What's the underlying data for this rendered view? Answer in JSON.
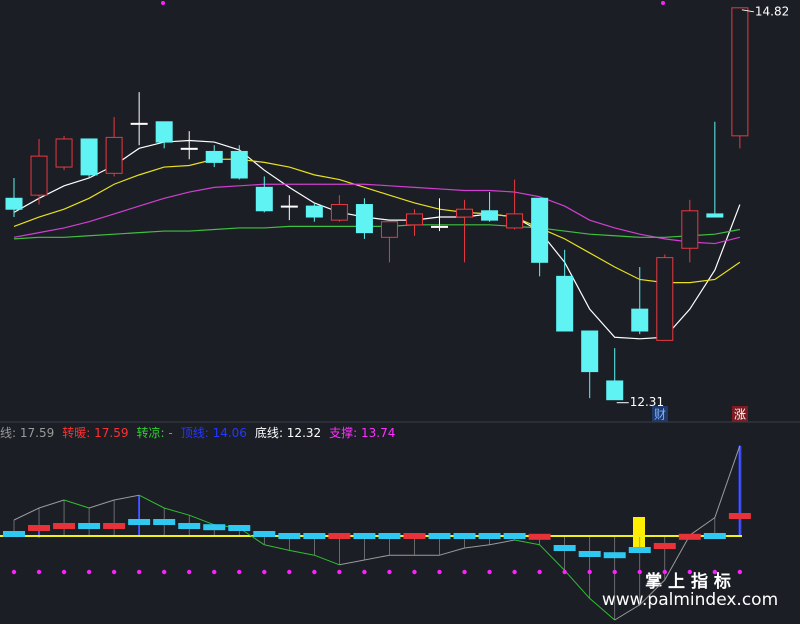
{
  "chart_data": [
    {
      "type": "candlestick",
      "open": [
        13.6,
        13.62,
        13.8,
        13.98,
        13.76,
        14.08,
        14.09,
        13.92,
        13.9,
        13.9,
        13.67,
        13.55,
        13.55,
        13.46,
        13.56,
        13.35,
        13.43,
        13.42,
        13.48,
        13.52,
        13.41,
        13.6,
        13.1,
        12.75,
        12.43,
        12.89,
        12.69,
        13.28,
        13.5,
        14.0
      ],
      "high": [
        13.73,
        13.98,
        14.0,
        13.98,
        14.12,
        14.28,
        14.09,
        14.03,
        13.94,
        13.94,
        13.74,
        13.62,
        13.57,
        13.62,
        13.6,
        13.45,
        13.53,
        13.6,
        13.59,
        13.64,
        13.72,
        13.6,
        13.27,
        12.75,
        12.64,
        13.16,
        13.24,
        13.59,
        14.09,
        14.82
      ],
      "low": [
        13.48,
        13.56,
        13.78,
        13.73,
        13.74,
        13.94,
        13.92,
        13.85,
        13.8,
        13.72,
        13.51,
        13.46,
        13.45,
        13.45,
        13.34,
        13.19,
        13.36,
        13.39,
        13.19,
        13.45,
        13.4,
        13.1,
        12.75,
        12.32,
        12.31,
        12.73,
        12.69,
        13.19,
        13.48,
        13.92
      ],
      "close": [
        13.53,
        13.87,
        13.98,
        13.75,
        13.99,
        14.08,
        13.96,
        13.92,
        13.83,
        13.73,
        13.52,
        13.55,
        13.48,
        13.56,
        13.38,
        13.45,
        13.5,
        13.42,
        13.53,
        13.46,
        13.5,
        13.19,
        12.75,
        12.49,
        12.31,
        12.75,
        13.22,
        13.52,
        13.48,
        14.82
      ],
      "up_color": "#e8393f",
      "down_color": "#5ff3f3",
      "doji_color": "#ffffff",
      "ylim": [
        12.18,
        14.87
      ],
      "moving_averages": [
        {
          "color": "#ffffff",
          "values": [
            13.51,
            13.6,
            13.68,
            13.73,
            13.81,
            13.92,
            13.96,
            13.97,
            13.96,
            13.91,
            13.78,
            13.67,
            13.57,
            13.51,
            13.48,
            13.46,
            13.46,
            13.48,
            13.48,
            13.5,
            13.48,
            13.39,
            13.19,
            12.89,
            12.71,
            12.7,
            12.71,
            12.89,
            13.14,
            13.56
          ]
        },
        {
          "color": "#e8e020",
          "values": [
            13.42,
            13.48,
            13.53,
            13.6,
            13.69,
            13.75,
            13.8,
            13.81,
            13.85,
            13.85,
            13.83,
            13.8,
            13.75,
            13.72,
            13.67,
            13.62,
            13.57,
            13.53,
            13.51,
            13.5,
            13.48,
            13.41,
            13.34,
            13.25,
            13.16,
            13.08,
            13.06,
            13.06,
            13.08,
            13.19
          ]
        },
        {
          "color": "#d040d0",
          "values": [
            13.35,
            13.38,
            13.41,
            13.45,
            13.5,
            13.55,
            13.6,
            13.64,
            13.67,
            13.68,
            13.69,
            13.69,
            13.69,
            13.69,
            13.69,
            13.68,
            13.67,
            13.66,
            13.65,
            13.65,
            13.64,
            13.61,
            13.55,
            13.46,
            13.41,
            13.37,
            13.34,
            13.32,
            13.31,
            13.35
          ]
        },
        {
          "color": "#40c040",
          "values": [
            13.34,
            13.35,
            13.35,
            13.36,
            13.37,
            13.38,
            13.39,
            13.39,
            13.4,
            13.41,
            13.41,
            13.42,
            13.42,
            13.42,
            13.42,
            13.42,
            13.43,
            13.43,
            13.43,
            13.43,
            13.42,
            13.41,
            13.39,
            13.37,
            13.36,
            13.35,
            13.35,
            13.36,
            13.37,
            13.4
          ]
        }
      ],
      "max_label": "14.82",
      "min_label": "12.31",
      "markers": [
        "财",
        "涨"
      ]
    },
    {
      "type": "indicator",
      "legend": [
        {
          "label": "线",
          "value": "17.59",
          "color": "#9a9a9a"
        },
        {
          "label": "转暖",
          "value": "17.59",
          "color": "#ff3030"
        },
        {
          "label": "转凉",
          "value": "-",
          "color": "#30d030"
        },
        {
          "label": "顶线",
          "value": "14.06",
          "color": "#2438ff"
        },
        {
          "label": "底线",
          "value": "12.32",
          "color": "#ffffff"
        },
        {
          "label": "支撑",
          "value": "13.74",
          "color": "#ff30ff"
        }
      ],
      "ylim": [
        -10.5,
        14
      ],
      "line": [
        2,
        3.5,
        4.5,
        3.5,
        4.5,
        5.1,
        3.5,
        2.6,
        1.4,
        1,
        -1.1,
        -1.8,
        -2.4,
        -3.6,
        -3,
        -2.4,
        -2.4,
        -2.4,
        -1.5,
        -1.1,
        -0.5,
        -1.1,
        -4.3,
        -7.8,
        -10.5,
        -8.6,
        -5.5,
        0.1,
        2.3,
        11.3
      ],
      "rise_color": "#9a9a9a",
      "fall_color": "#2fbf2f",
      "blocks": [
        0.25,
        1,
        1.25,
        1.25,
        1.25,
        1.75,
        1.75,
        1.25,
        1.1,
        1,
        0.25,
        0,
        0,
        0,
        0,
        0,
        0,
        0,
        0,
        0,
        0,
        -0.1,
        -1.5,
        -2.25,
        -2.4,
        -1.75,
        -1.25,
        -0.1,
        0,
        2.5
      ],
      "block_colors": [
        "#2fc8f0",
        "#e8323a",
        "#e8323a",
        "#2fc8f0",
        "#e8323a",
        "#2fc8f0",
        "#2fc8f0",
        "#2fc8f0",
        "#2fc8f0",
        "#2fc8f0",
        "#2fc8f0",
        "#2fc8f0",
        "#2fc8f0",
        "#e8323a",
        "#2fc8f0",
        "#2fc8f0",
        "#e8323a",
        "#2fc8f0",
        "#2fc8f0",
        "#2fc8f0",
        "#2fc8f0",
        "#e8323a",
        "#2fc8f0",
        "#2fc8f0",
        "#2fc8f0",
        "#2fc8f0",
        "#e8323a",
        "#e8323a",
        "#2fc8f0",
        "#e8323a"
      ],
      "dots": [
        -4.5,
        -4.5,
        -4.5,
        -4.5,
        -4.5,
        -4.5,
        -4.5,
        -4.5,
        -4.5,
        -4.5,
        -4.5,
        -4.5,
        -4.5,
        -4.5,
        -4.5,
        -4.5,
        -4.5,
        -4.5,
        -4.5,
        -4.5,
        -4.5,
        -4.5,
        -4.5,
        -4.5,
        -4.5,
        -4.5,
        -4.5,
        -4.5,
        -4.5,
        -4.5
      ],
      "dot_color": "#ff20ff",
      "baseline_color": "#f0f020",
      "watermark": [
        "掌 上 指 标",
        "www.palmindex.com"
      ]
    }
  ]
}
